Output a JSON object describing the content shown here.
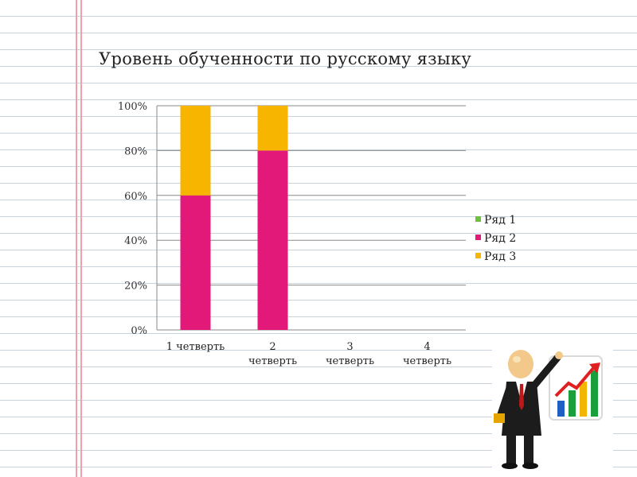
{
  "title": "Уровень обученности по русскому языку",
  "colors": {
    "series1": "#70c040",
    "series2": "#e3197a",
    "series3": "#f7b500",
    "gridline": "#8a8a8a"
  },
  "chart_data": {
    "type": "bar",
    "stacked": true,
    "percent_stacked": true,
    "title": "Уровень обученности по русскому языку",
    "categories": [
      [
        "1 четверть"
      ],
      [
        "2",
        "четверть"
      ],
      [
        "3",
        "четверть"
      ],
      [
        "4",
        "четверть"
      ]
    ],
    "series": [
      {
        "name": "Ряд 1",
        "values": [
          0,
          0,
          0,
          0
        ]
      },
      {
        "name": "Ряд 2",
        "values": [
          60,
          80,
          0,
          0
        ]
      },
      {
        "name": "Ряд 3",
        "values": [
          40,
          20,
          0,
          0
        ]
      }
    ],
    "ylim": [
      0,
      100
    ],
    "yticks": [
      "0%",
      "20%",
      "40%",
      "60%",
      "80%",
      "100%"
    ],
    "grid": true,
    "legend": "right"
  },
  "illustration": {
    "icon": "businessman-presenting-growth-chart-icon",
    "bar_colors": [
      "#1f5fc4",
      "#19a03c",
      "#f2b600",
      "#19a03c"
    ],
    "arrow_color": "#e02020"
  }
}
